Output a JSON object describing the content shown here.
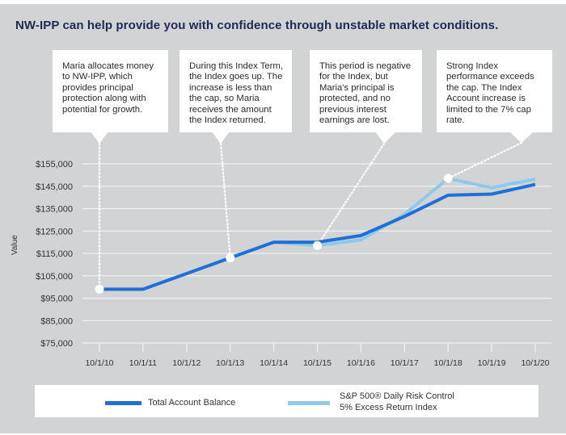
{
  "title": "NW-IPP can help provide you with confidence through unstable market conditions.",
  "callouts": [
    {
      "text": "Maria allocates money to NW-IPP, which provides principal protection along with potential for growth.",
      "anchor_index": 0
    },
    {
      "text": "During this Index Term, the Index goes up. The increase is less than the cap, so Maria receives the amount the Index returned.",
      "anchor_index": 3
    },
    {
      "text": "This period is negative for the Index, but Maria's principal is protected, and no previous interest earnings are lost.",
      "anchor_index": 5
    },
    {
      "text": "Strong Index performance exceeds the cap. The Index Account increase is limited to the 7% cap rate.",
      "anchor_index": 8
    }
  ],
  "colors": {
    "background": "#d1d3d4",
    "total_account": "#1f6fd6",
    "index": "#8ec9ec",
    "title": "#1f2a52"
  },
  "chart_data": {
    "type": "line",
    "title": "NW-IPP can help provide you with confidence through unstable market conditions.",
    "xlabel": "",
    "ylabel": "Value",
    "x": [
      "10/1/10",
      "10/1/11",
      "10/1/12",
      "10/1/13",
      "10/1/14",
      "10/1/15",
      "10/1/16",
      "10/1/17",
      "10/1/18",
      "10/1/19",
      "10/1/20"
    ],
    "yticks": [
      "$75,000",
      "$85,000",
      "$95,000",
      "$105,000",
      "$115,000",
      "$125,000",
      "$135,000",
      "$145,000",
      "$155,000"
    ],
    "ylim": [
      75000,
      155000
    ],
    "grid": true,
    "legend_position": "bottom",
    "series": [
      {
        "name": "Total Account Balance",
        "color": "#1f6fd6",
        "values": [
          99000,
          99000,
          106000,
          113000,
          120000,
          120000,
          123000,
          131500,
          141000,
          141500,
          145800
        ]
      },
      {
        "name": "S&P 500® Daily Risk Control 5% Excess Return Index",
        "color": "#8ec9ec",
        "values": [
          99000,
          99000,
          106000,
          113000,
          120000,
          118500,
          121000,
          132500,
          148500,
          144300,
          148200
        ]
      }
    ],
    "highlight_points": [
      {
        "x": "10/1/10",
        "value": 99000
      },
      {
        "x": "10/1/13",
        "value": 113000
      },
      {
        "x": "10/1/15",
        "value": 118500
      },
      {
        "x": "10/1/18",
        "value": 148500
      }
    ]
  },
  "legend": [
    {
      "label": "Total Account Balance"
    },
    {
      "label_line1": "S&P 500® Daily Risk Control",
      "label_line2": "5% Excess Return Index"
    }
  ]
}
